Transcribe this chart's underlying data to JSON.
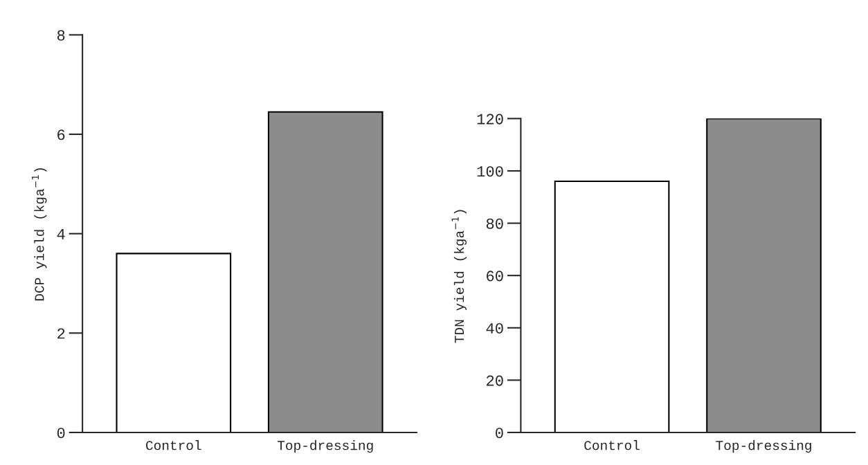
{
  "chart_data": [
    {
      "type": "bar",
      "categories": [
        "Control",
        "Top-dressing"
      ],
      "values": [
        3.6,
        6.45
      ],
      "colors": [
        "#ffffff",
        "#8c8c8c"
      ],
      "ylabel": "DCP yield (kga$^{−1}$)",
      "ylim": [
        0,
        8
      ],
      "yticks": [
        0,
        2,
        4,
        6,
        8
      ],
      "grid": false,
      "legend": false
    },
    {
      "type": "bar",
      "categories": [
        "Control",
        "Top-dressing"
      ],
      "values": [
        96,
        120
      ],
      "colors": [
        "#ffffff",
        "#8c8c8c"
      ],
      "ylabel": "TDN yield (kga$^{−1}$)",
      "ylim": [
        0,
        120
      ],
      "yticks": [
        0,
        20,
        40,
        60,
        80,
        100,
        120
      ],
      "grid": false,
      "legend": false
    }
  ]
}
